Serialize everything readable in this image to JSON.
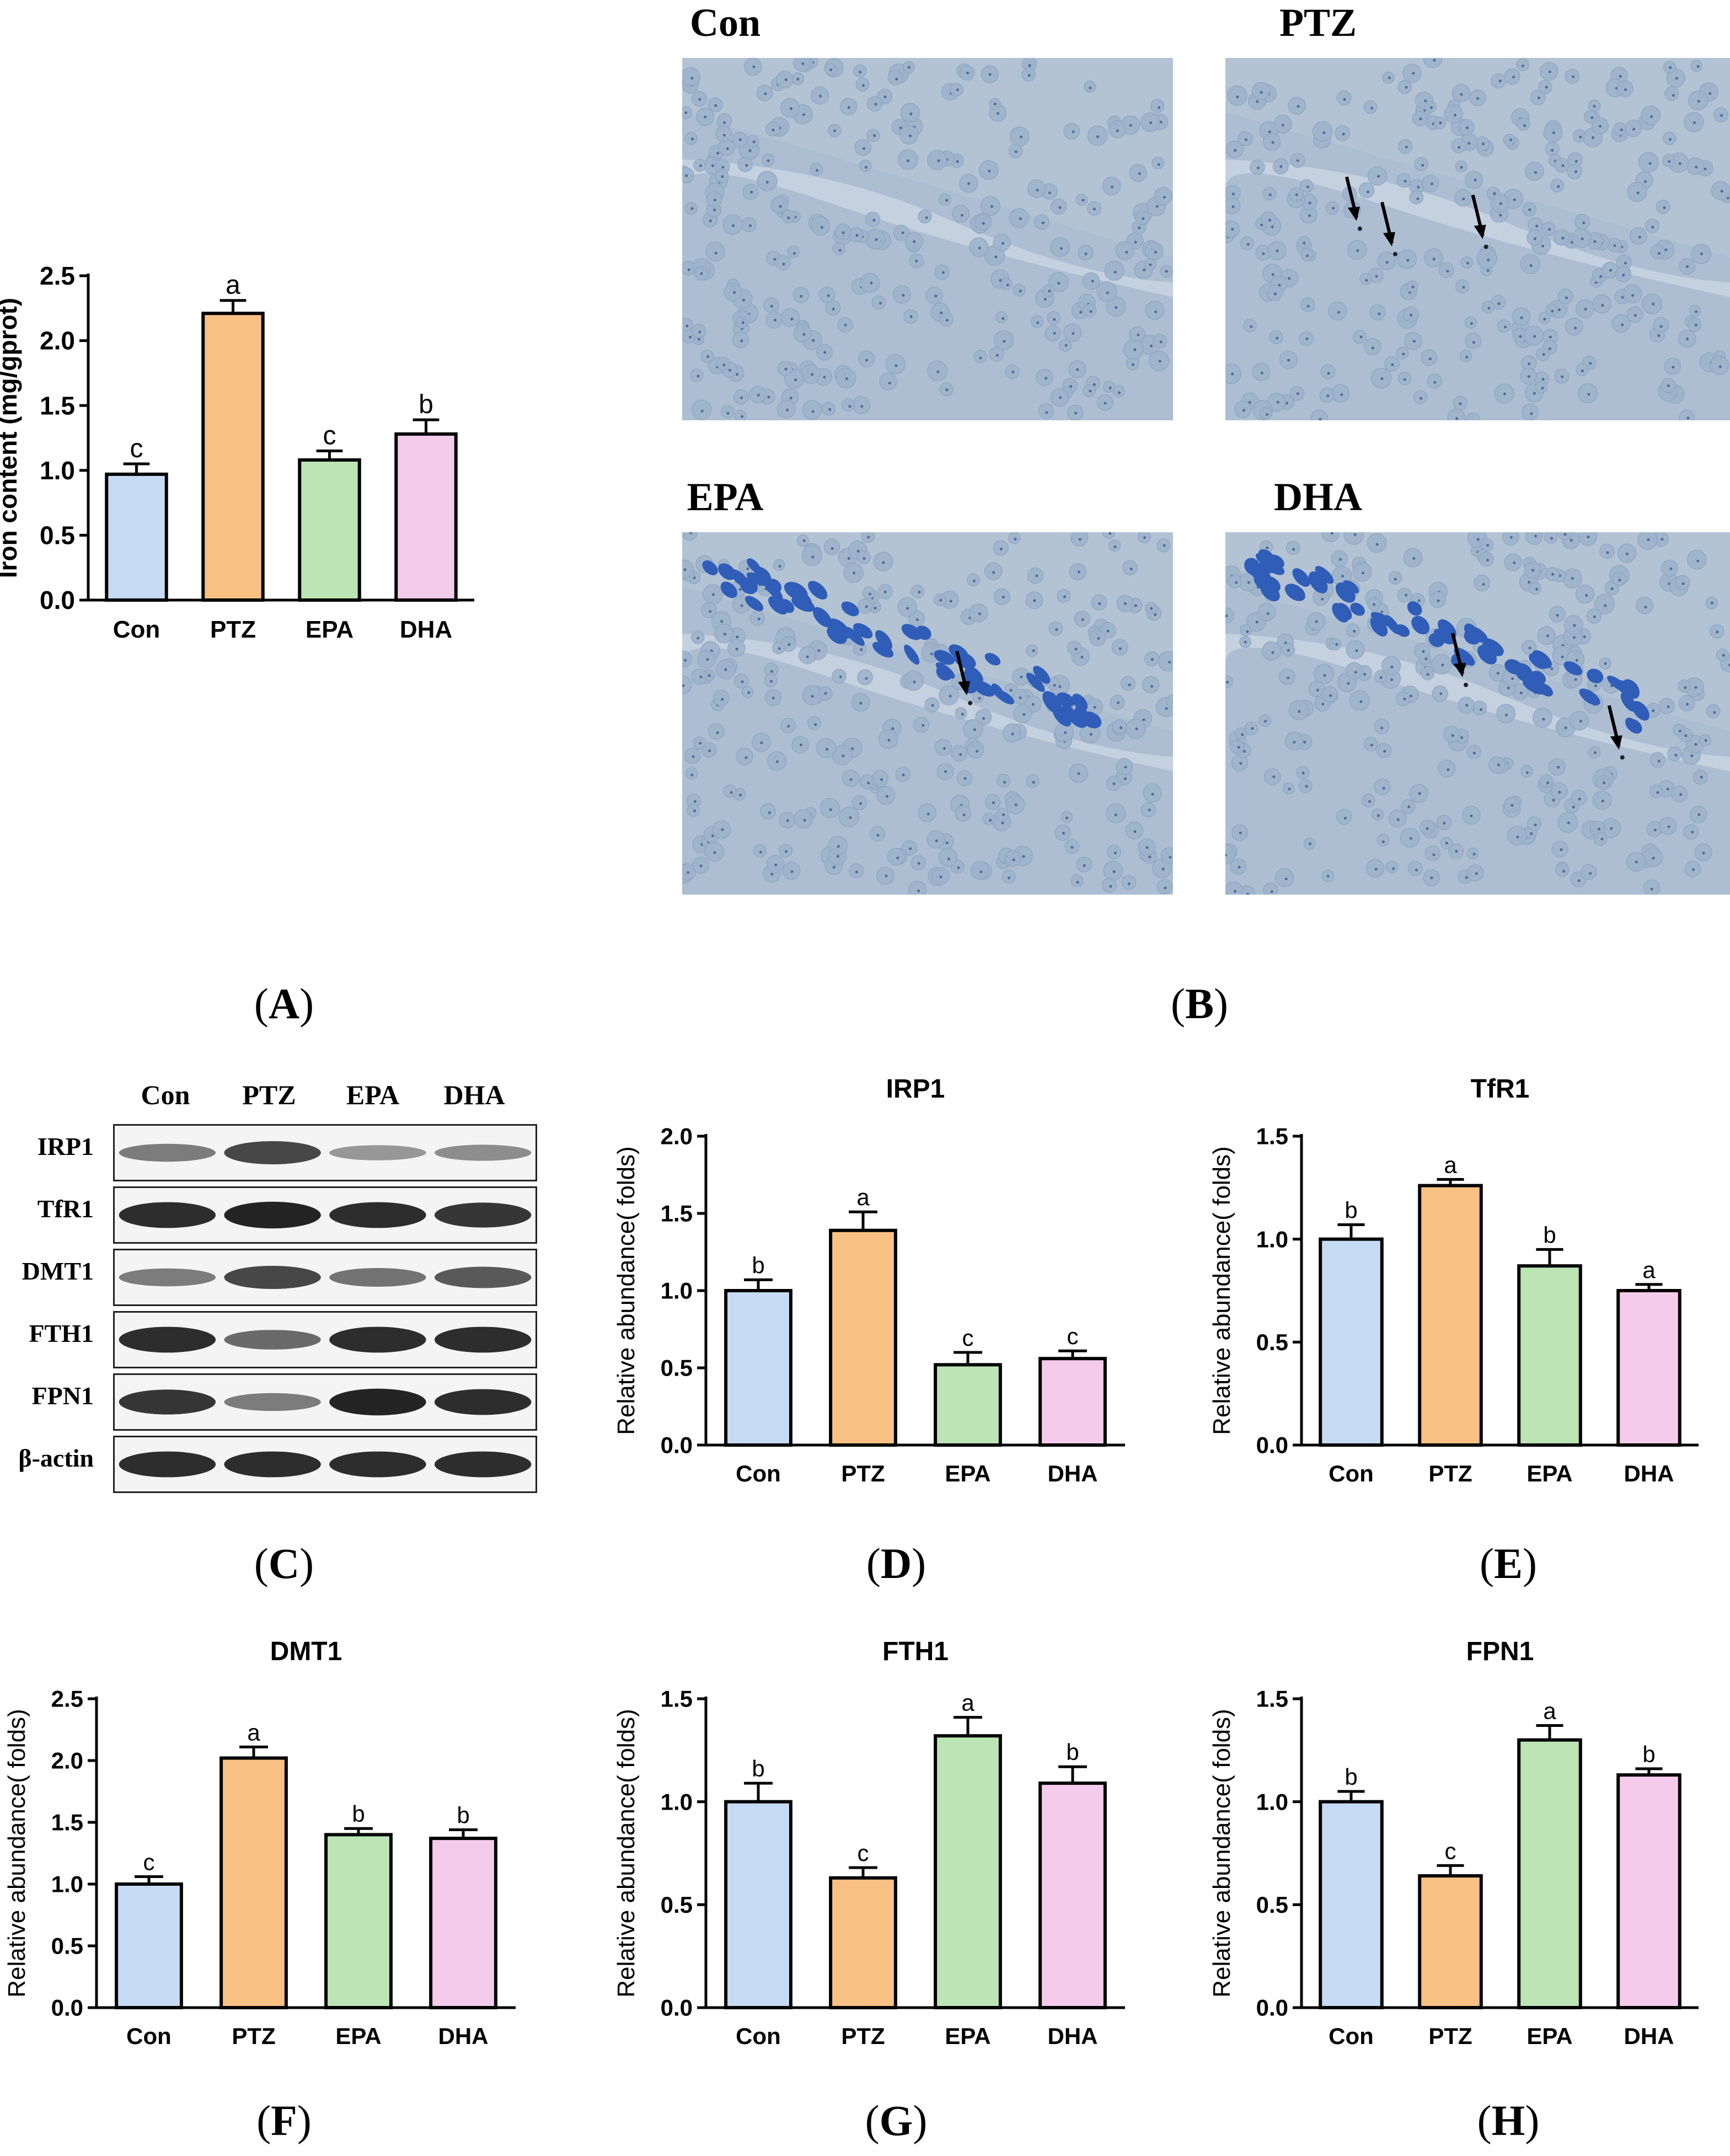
{
  "panel_labels": {
    "A": "A",
    "B": "B",
    "C": "C",
    "D": "D",
    "E": "E",
    "F": "F",
    "G": "G",
    "H": "H"
  },
  "colors": {
    "Con": "#c6dbf3",
    "PTZ": "#f9c084",
    "EPA": "#bce4b5",
    "DHA": "#f5cbeb",
    "outline": "#000000",
    "arrow": "#000000"
  },
  "micrographs": {
    "titles": [
      "Con",
      "PTZ",
      "EPA",
      "DHA"
    ],
    "arrow_counts": [
      0,
      3,
      1,
      2
    ]
  },
  "western_blot": {
    "groups": [
      "Con",
      "PTZ",
      "EPA",
      "DHA"
    ],
    "proteins": [
      "IRP1",
      "TfR1",
      "DMT1",
      "FTH1",
      "FPN1",
      "β-actin"
    ],
    "band_intensity": [
      [
        0.45,
        0.75,
        0.3,
        0.35
      ],
      [
        0.9,
        0.95,
        0.9,
        0.85
      ],
      [
        0.45,
        0.75,
        0.5,
        0.65
      ],
      [
        0.9,
        0.55,
        0.9,
        0.9
      ],
      [
        0.85,
        0.45,
        0.95,
        0.9
      ],
      [
        0.9,
        0.9,
        0.9,
        0.9
      ]
    ]
  },
  "chart_data": [
    {
      "id": "A",
      "type": "bar",
      "title": "",
      "ylabel": "Iron content (mg/gprot)",
      "ylabel_bold": true,
      "categories": [
        "Con",
        "PTZ",
        "EPA",
        "DHA"
      ],
      "values": [
        0.97,
        2.21,
        1.08,
        1.28
      ],
      "errors": [
        0.08,
        0.1,
        0.07,
        0.11
      ],
      "annotations": [
        "c",
        "a",
        "c",
        "b"
      ],
      "ylim": [
        0,
        2.5
      ],
      "yticks": [
        "0.0",
        "0.5",
        "1.0",
        "1.5",
        "2.0",
        "2.5"
      ]
    },
    {
      "id": "D",
      "type": "bar",
      "title": "IRP1",
      "ylabel": "Relative abundance( folds)",
      "ylabel_bold": false,
      "categories": [
        "Con",
        "PTZ",
        "EPA",
        "DHA"
      ],
      "values": [
        1.0,
        1.39,
        0.52,
        0.56
      ],
      "errors": [
        0.07,
        0.12,
        0.08,
        0.05
      ],
      "annotations": [
        "b",
        "a",
        "c",
        "c"
      ],
      "ylim": [
        0,
        2.0
      ],
      "yticks": [
        "0.0",
        "0.5",
        "1.0",
        "1.5",
        "2.0"
      ]
    },
    {
      "id": "E",
      "type": "bar",
      "title": "TfR1",
      "ylabel": "Relative abundance( folds)",
      "ylabel_bold": false,
      "categories": [
        "Con",
        "PTZ",
        "EPA",
        "DHA"
      ],
      "values": [
        1.0,
        1.26,
        0.87,
        0.75
      ],
      "errors": [
        0.07,
        0.03,
        0.08,
        0.03
      ],
      "annotations": [
        "b",
        "a",
        "b",
        "a"
      ],
      "ylim": [
        0,
        1.5
      ],
      "yticks": [
        "0.0",
        "0.5",
        "1.0",
        "1.5"
      ]
    },
    {
      "id": "F",
      "type": "bar",
      "title": "DMT1",
      "ylabel": "Relative abundance( folds)",
      "ylabel_bold": false,
      "categories": [
        "Con",
        "PTZ",
        "EPA",
        "DHA"
      ],
      "values": [
        1.0,
        2.02,
        1.4,
        1.37
      ],
      "errors": [
        0.06,
        0.09,
        0.05,
        0.07
      ],
      "annotations": [
        "c",
        "a",
        "b",
        "b"
      ],
      "ylim": [
        0,
        2.5
      ],
      "yticks": [
        "0.0",
        "0.5",
        "1.0",
        "1.5",
        "2.0",
        "2.5"
      ]
    },
    {
      "id": "G",
      "type": "bar",
      "title": "FTH1",
      "ylabel": "Relative abundance( folds)",
      "ylabel_bold": false,
      "categories": [
        "Con",
        "PTZ",
        "EPA",
        "DHA"
      ],
      "values": [
        1.0,
        0.63,
        1.32,
        1.09
      ],
      "errors": [
        0.09,
        0.05,
        0.09,
        0.08
      ],
      "annotations": [
        "b",
        "c",
        "a",
        "b"
      ],
      "ylim": [
        0,
        1.5
      ],
      "yticks": [
        "0.0",
        "0.5",
        "1.0",
        "1.5"
      ]
    },
    {
      "id": "H",
      "type": "bar",
      "title": "FPN1",
      "ylabel": "Relative abundance( folds)",
      "ylabel_bold": false,
      "categories": [
        "Con",
        "PTZ",
        "EPA",
        "DHA"
      ],
      "values": [
        1.0,
        0.64,
        1.3,
        1.13
      ],
      "errors": [
        0.05,
        0.05,
        0.07,
        0.03
      ],
      "annotations": [
        "b",
        "c",
        "a",
        "b"
      ],
      "ylim": [
        0,
        1.5
      ],
      "yticks": [
        "0.0",
        "0.5",
        "1.0",
        "1.5"
      ]
    }
  ]
}
